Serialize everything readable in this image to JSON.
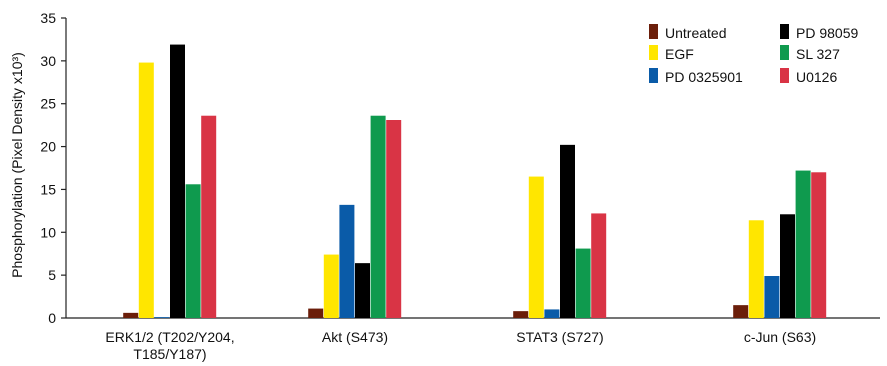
{
  "chart_data": {
    "type": "bar",
    "title": "",
    "xlabel": "",
    "ylabel": "Phosphorylation (Pixel Density x10³)",
    "ylim": [
      0,
      35
    ],
    "yticks": [
      "0",
      "5",
      "10",
      "15",
      "20",
      "25",
      "30",
      "35"
    ],
    "grid": false,
    "legend_position": "top-right",
    "categories": [
      [
        "ERK1/2 (T202/Y204,",
        "T185/Y187)"
      ],
      [
        "Akt (S473)"
      ],
      [
        "STAT3 (S727)"
      ],
      [
        "c-Jun (S63)"
      ]
    ],
    "series": [
      {
        "name": "Untreated",
        "color": "#6b1e0a",
        "values": [
          0.6,
          1.1,
          0.8,
          1.5
        ]
      },
      {
        "name": "EGF",
        "color": "#ffe600",
        "values": [
          29.8,
          7.4,
          16.5,
          11.4
        ]
      },
      {
        "name": "PD 0325901",
        "color": "#0a5ba8",
        "values": [
          0.1,
          13.2,
          1.0,
          4.9
        ]
      },
      {
        "name": "PD 98059",
        "color": "#000000",
        "values": [
          31.9,
          6.4,
          20.2,
          12.1
        ]
      },
      {
        "name": "SL 327",
        "color": "#0f9a4e",
        "values": [
          15.6,
          23.6,
          8.1,
          17.2
        ]
      },
      {
        "name": "U0126",
        "color": "#d93445",
        "values": [
          23.6,
          23.1,
          12.2,
          17.0
        ]
      }
    ]
  }
}
